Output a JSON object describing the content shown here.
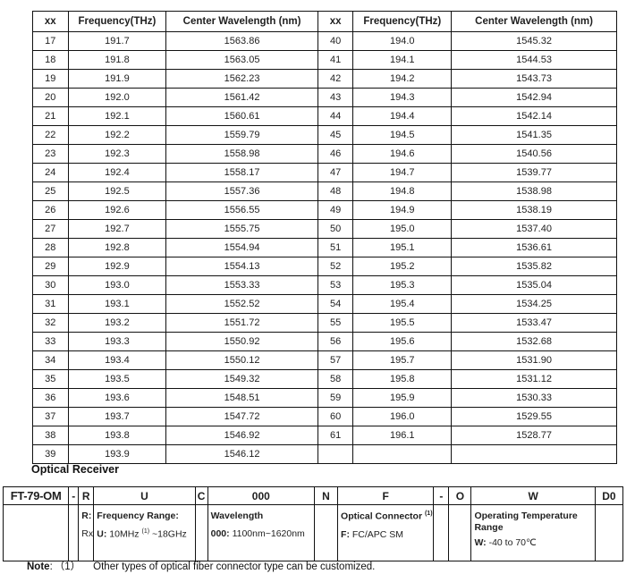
{
  "channel_table": {
    "headers": [
      "xx",
      "Frequency(THz)",
      "Center Wavelength (nm)",
      "xx",
      "Frequency(THz)",
      "Center Wavelength (nm)"
    ],
    "rows": [
      [
        "17",
        "191.7",
        "1563.86",
        "40",
        "194.0",
        "1545.32"
      ],
      [
        "18",
        "191.8",
        "1563.05",
        "41",
        "194.1",
        "1544.53"
      ],
      [
        "19",
        "191.9",
        "1562.23",
        "42",
        "194.2",
        "1543.73"
      ],
      [
        "20",
        "192.0",
        "1561.42",
        "43",
        "194.3",
        "1542.94"
      ],
      [
        "21",
        "192.1",
        "1560.61",
        "44",
        "194.4",
        "1542.14"
      ],
      [
        "22",
        "192.2",
        "1559.79",
        "45",
        "194.5",
        "1541.35"
      ],
      [
        "23",
        "192.3",
        "1558.98",
        "46",
        "194.6",
        "1540.56"
      ],
      [
        "24",
        "192.4",
        "1558.17",
        "47",
        "194.7",
        "1539.77"
      ],
      [
        "25",
        "192.5",
        "1557.36",
        "48",
        "194.8",
        "1538.98"
      ],
      [
        "26",
        "192.6",
        "1556.55",
        "49",
        "194.9",
        "1538.19"
      ],
      [
        "27",
        "192.7",
        "1555.75",
        "50",
        "195.0",
        "1537.40"
      ],
      [
        "28",
        "192.8",
        "1554.94",
        "51",
        "195.1",
        "1536.61"
      ],
      [
        "29",
        "192.9",
        "1554.13",
        "52",
        "195.2",
        "1535.82"
      ],
      [
        "30",
        "193.0",
        "1553.33",
        "53",
        "195.3",
        "1535.04"
      ],
      [
        "31",
        "193.1",
        "1552.52",
        "54",
        "195.4",
        "1534.25"
      ],
      [
        "32",
        "193.2",
        "1551.72",
        "55",
        "195.5",
        "1533.47"
      ],
      [
        "33",
        "193.3",
        "1550.92",
        "56",
        "195.6",
        "1532.68"
      ],
      [
        "34",
        "193.4",
        "1550.12",
        "57",
        "195.7",
        "1531.90"
      ],
      [
        "35",
        "193.5",
        "1549.32",
        "58",
        "195.8",
        "1531.12"
      ],
      [
        "36",
        "193.6",
        "1548.51",
        "59",
        "195.9",
        "1530.33"
      ],
      [
        "37",
        "193.7",
        "1547.72",
        "60",
        "196.0",
        "1529.55"
      ],
      [
        "38",
        "193.8",
        "1546.92",
        "61",
        "196.1",
        "1528.77"
      ],
      [
        "39",
        "193.9",
        "1546.12",
        "",
        "",
        ""
      ]
    ]
  },
  "receiver_section": {
    "title": "Optical Receiver",
    "ordering": {
      "header": [
        "FT-79-OM",
        "-",
        "R",
        "U",
        "C",
        "000",
        "N",
        "F",
        "-",
        "O",
        "W",
        "D0"
      ],
      "r_col": {
        "code": "R:",
        "value": "Rx"
      },
      "u_col": {
        "title": "Frequency Range:",
        "code": "U:",
        "pre": "10MHz",
        "sup": "(1)",
        "post": "~18GHz"
      },
      "wl_col": {
        "title": "Wavelength",
        "code": "000:",
        "value": "1100nm~1620nm"
      },
      "f_col": {
        "title": "Optical Connector",
        "sup": "(1)",
        "code": "F:",
        "value": "FC/APC SM"
      },
      "w_col": {
        "title_line1": "Operating Temperature",
        "title_line2": "Range",
        "code": "W:",
        "value": "-40 to 70℃"
      }
    },
    "note": {
      "label": "Note",
      "colon": ":",
      "ref": "（1）",
      "text": "Other types of optical fiber connector type can be customized."
    }
  }
}
